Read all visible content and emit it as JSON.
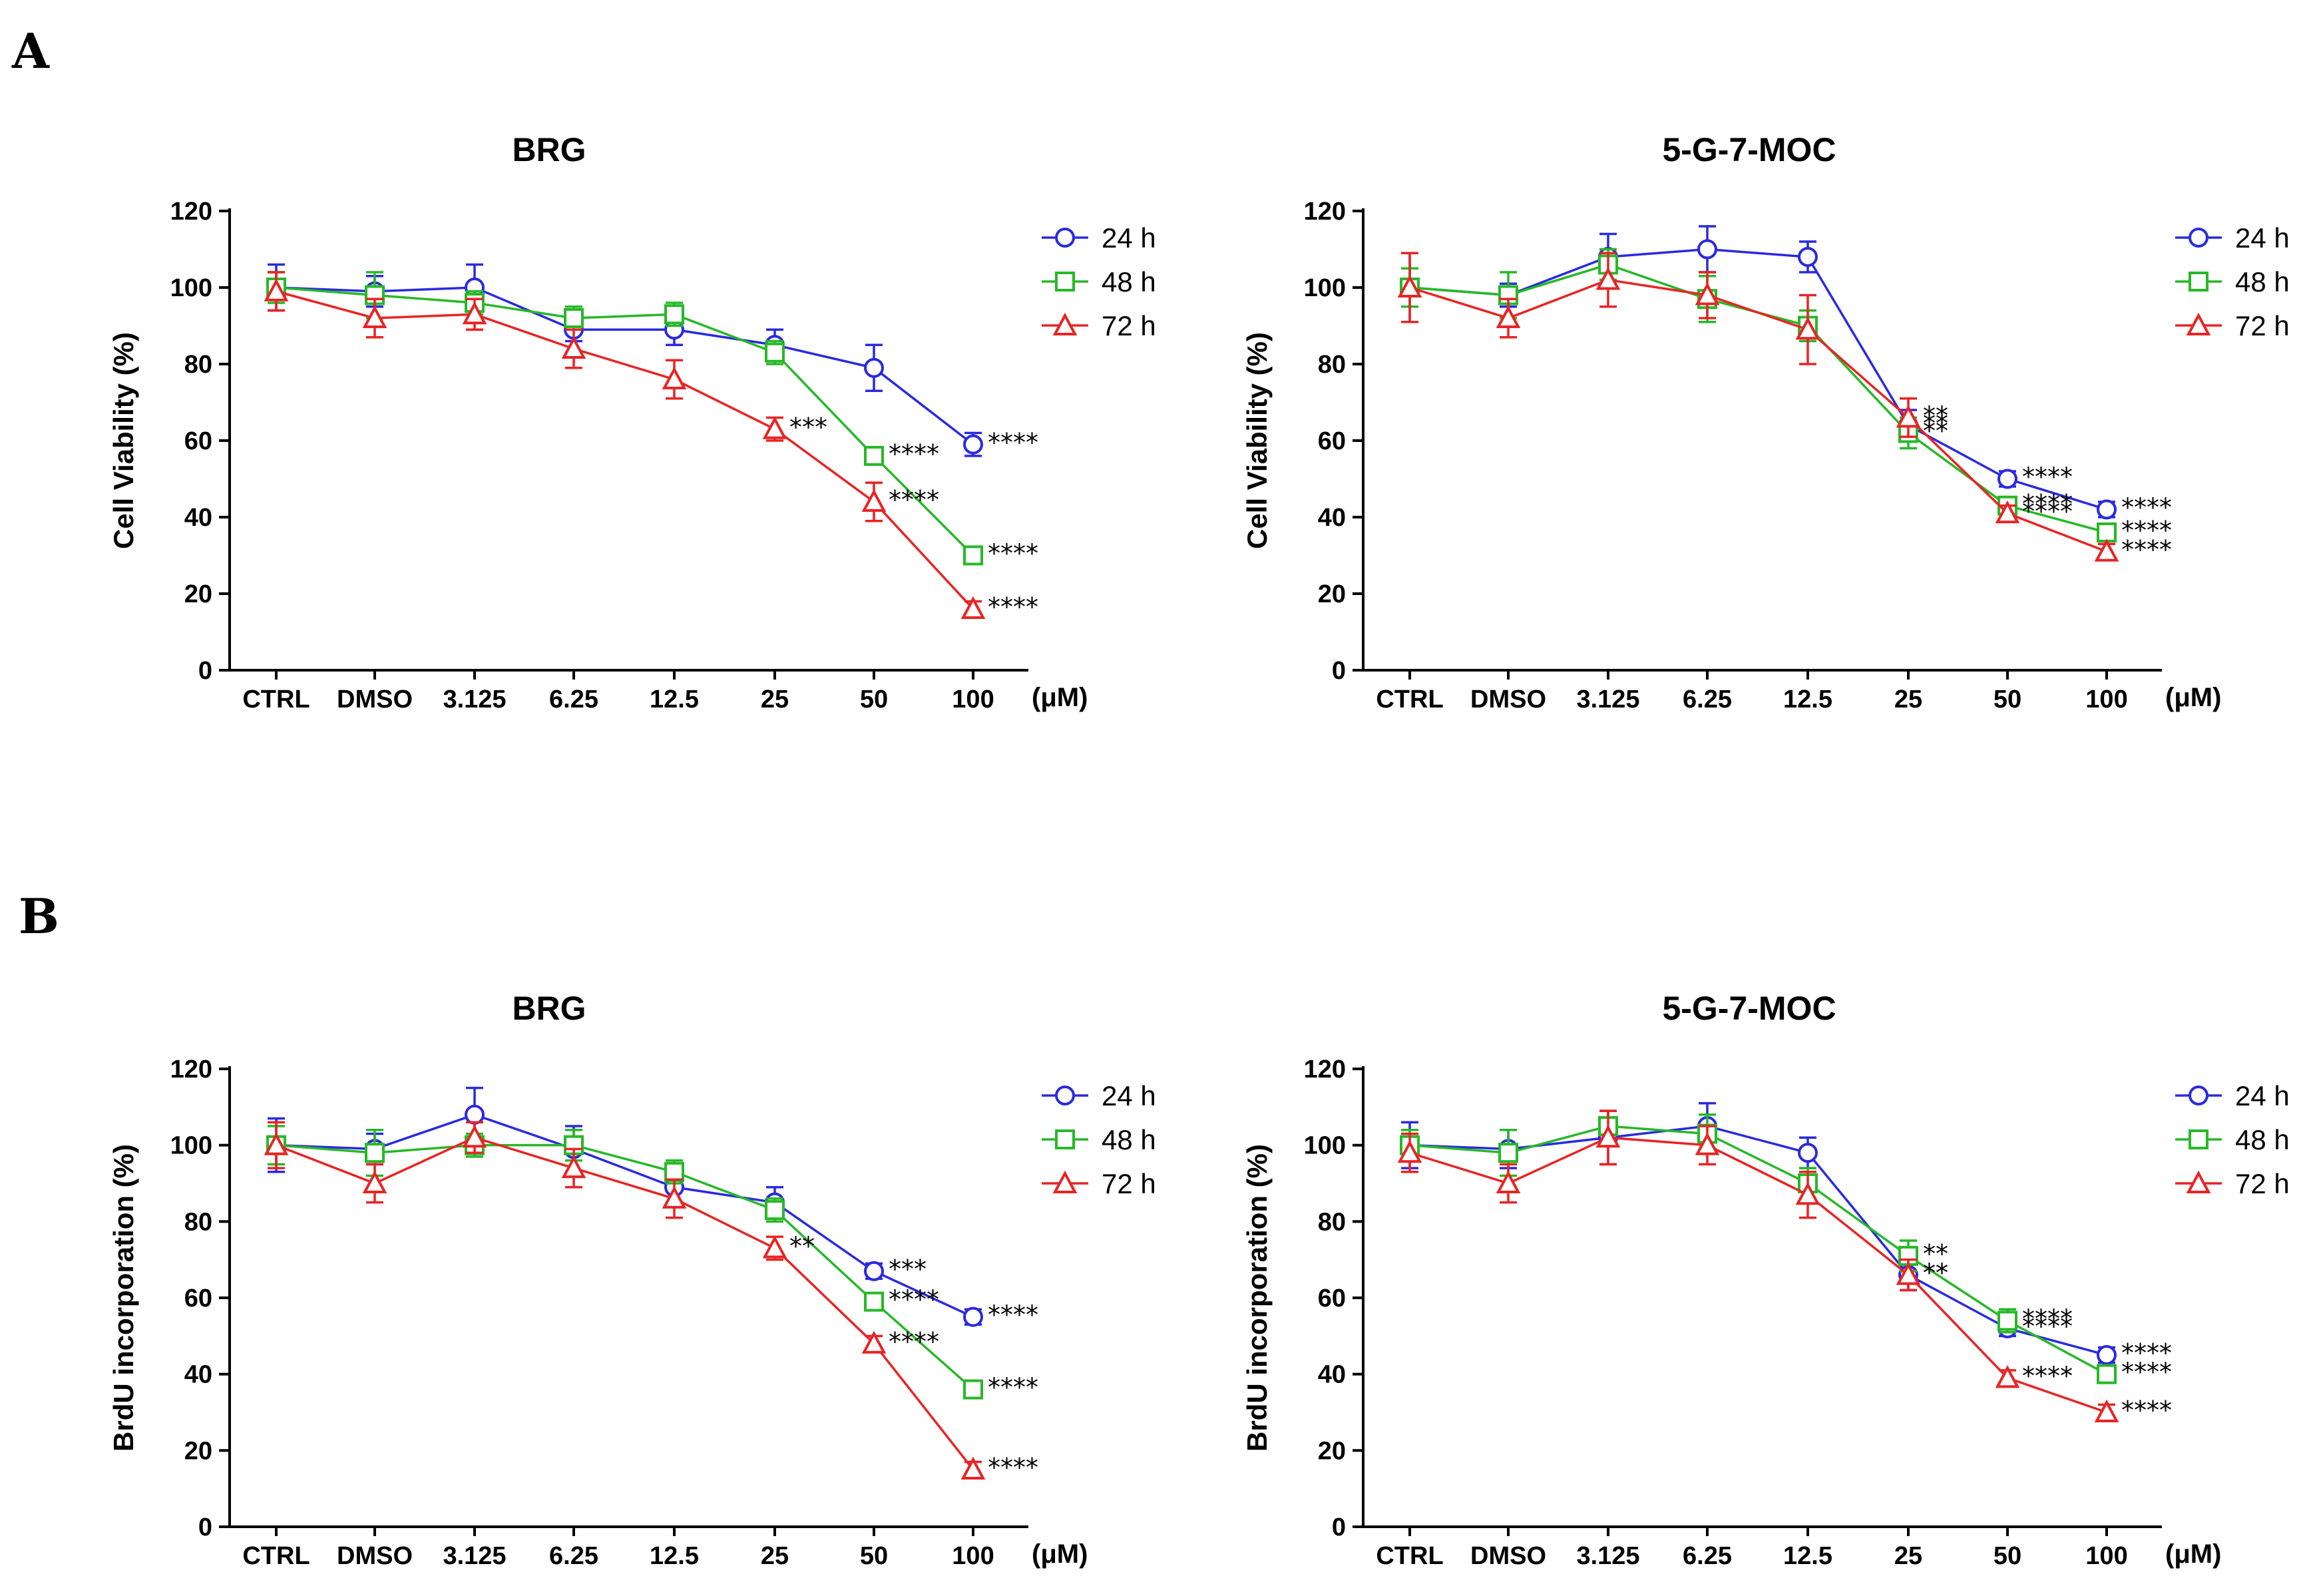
{
  "panel_labels": [
    "A",
    "B"
  ],
  "colors": {
    "24 h": "#2a2ae0",
    "48 h": "#27b827",
    "72 h": "#e82424"
  },
  "chart_data": [
    {
      "type": "line",
      "panel": "A",
      "title": "BRG",
      "xlabel": "",
      "ylabel": "Cell Viability (%)",
      "unit": "(μM)",
      "categories": [
        "CTRL",
        "DMSO",
        "3.125",
        "6.25",
        "12.5",
        "25",
        "50",
        "100"
      ],
      "ylim": [
        0,
        120
      ],
      "yticks": [
        0,
        20,
        40,
        60,
        80,
        100,
        120
      ],
      "legend": "top-right",
      "series": [
        {
          "name": "24 h",
          "marker": "circle",
          "values": [
            100,
            99,
            100,
            89,
            89,
            85,
            79,
            59
          ],
          "errors": [
            6,
            4,
            6,
            3,
            4,
            4,
            6,
            3
          ],
          "annotations": [
            "",
            "",
            "",
            "",
            "",
            "",
            "",
            "****"
          ]
        },
        {
          "name": "48 h",
          "marker": "square",
          "values": [
            100,
            98,
            96,
            92,
            93,
            83,
            56,
            30
          ],
          "errors": [
            4,
            6,
            3,
            3,
            3,
            3,
            2,
            2
          ],
          "annotations": [
            "",
            "",
            "",
            "",
            "",
            "",
            "****",
            "****"
          ]
        },
        {
          "name": "72 h",
          "marker": "triangle",
          "values": [
            99,
            92,
            93,
            84,
            76,
            63,
            44,
            16
          ],
          "errors": [
            5,
            5,
            4,
            5,
            5,
            3,
            5,
            2
          ],
          "annotations": [
            "",
            "",
            "",
            "",
            "",
            "***",
            "****",
            "****"
          ]
        }
      ]
    },
    {
      "type": "line",
      "panel": "A",
      "title": "5-G-7-MOC",
      "xlabel": "",
      "ylabel": "Cell Viability (%)",
      "unit": "(μM)",
      "categories": [
        "CTRL",
        "DMSO",
        "3.125",
        "6.25",
        "12.5",
        "25",
        "50",
        "100"
      ],
      "ylim": [
        0,
        120
      ],
      "yticks": [
        0,
        20,
        40,
        60,
        80,
        100,
        120
      ],
      "legend": "top-right",
      "series": [
        {
          "name": "24 h",
          "marker": "circle",
          "values": [
            100,
            98,
            108,
            110,
            108,
            64,
            50,
            42
          ],
          "errors": [
            9,
            3,
            6,
            6,
            4,
            4,
            2,
            2
          ],
          "annotations": [
            "",
            "",
            "",
            "",
            "",
            "**",
            "****",
            "****"
          ]
        },
        {
          "name": "48 h",
          "marker": "square",
          "values": [
            100,
            98,
            106,
            97,
            90,
            62,
            43,
            36
          ],
          "errors": [
            5,
            6,
            4,
            6,
            4,
            4,
            2,
            2
          ],
          "annotations": [
            "",
            "",
            "",
            "",
            "",
            "**",
            "****",
            "****"
          ]
        },
        {
          "name": "72 h",
          "marker": "triangle",
          "values": [
            100,
            92,
            102,
            98,
            89,
            66,
            41,
            31
          ],
          "errors": [
            9,
            5,
            7,
            6,
            9,
            5,
            2,
            2
          ],
          "annotations": [
            "",
            "",
            "",
            "",
            "",
            "**",
            "****",
            "****"
          ]
        }
      ]
    },
    {
      "type": "line",
      "panel": "B",
      "title": "BRG",
      "xlabel": "",
      "ylabel": "BrdU incorporation (%)",
      "unit": "(μM)",
      "categories": [
        "CTRL",
        "DMSO",
        "3.125",
        "6.25",
        "12.5",
        "25",
        "50",
        "100"
      ],
      "ylim": [
        0,
        120
      ],
      "yticks": [
        0,
        20,
        40,
        60,
        80,
        100,
        120
      ],
      "legend": "top-right",
      "series": [
        {
          "name": "24 h",
          "marker": "circle",
          "values": [
            100,
            99,
            108,
            99,
            89,
            85,
            67,
            55
          ],
          "errors": [
            7,
            4,
            7,
            6,
            4,
            4,
            2,
            2
          ],
          "annotations": [
            "",
            "",
            "",
            "",
            "",
            "",
            "***",
            "****"
          ]
        },
        {
          "name": "48 h",
          "marker": "square",
          "values": [
            100,
            98,
            100,
            100,
            93,
            83,
            59,
            36
          ],
          "errors": [
            5,
            6,
            3,
            4,
            3,
            3,
            2,
            2
          ],
          "annotations": [
            "",
            "",
            "",
            "",
            "",
            "",
            "****",
            "****"
          ]
        },
        {
          "name": "72 h",
          "marker": "triangle",
          "values": [
            100,
            90,
            102,
            94,
            86,
            73,
            48,
            15
          ],
          "errors": [
            6,
            5,
            4,
            5,
            5,
            3,
            2,
            2
          ],
          "annotations": [
            "",
            "",
            "",
            "",
            "",
            "**",
            "****",
            "****"
          ]
        }
      ]
    },
    {
      "type": "line",
      "panel": "B",
      "title": "5-G-7-MOC",
      "xlabel": "",
      "ylabel": "BrdU incorporation (%)",
      "unit": "(μM)",
      "categories": [
        "CTRL",
        "DMSO",
        "3.125",
        "6.25",
        "12.5",
        "25",
        "50",
        "100"
      ],
      "ylim": [
        0,
        120
      ],
      "yticks": [
        0,
        20,
        40,
        60,
        80,
        100,
        120
      ],
      "legend": "top-right",
      "series": [
        {
          "name": "24 h",
          "marker": "circle",
          "values": [
            100,
            99,
            102,
            105,
            98,
            66,
            52,
            45
          ],
          "errors": [
            6,
            5,
            7,
            6,
            4,
            4,
            2,
            2
          ],
          "annotations": [
            "",
            "",
            "",
            "",
            "",
            "**",
            "****",
            "****"
          ]
        },
        {
          "name": "48 h",
          "marker": "square",
          "values": [
            100,
            98,
            105,
            103,
            90,
            71,
            54,
            40
          ],
          "errors": [
            4,
            6,
            4,
            5,
            4,
            4,
            3,
            2
          ],
          "annotations": [
            "",
            "",
            "",
            "",
            "",
            "**",
            "****",
            "****"
          ]
        },
        {
          "name": "72 h",
          "marker": "triangle",
          "values": [
            98,
            90,
            102,
            100,
            87,
            66,
            39,
            30
          ],
          "errors": [
            5,
            5,
            7,
            5,
            6,
            4,
            2,
            2
          ],
          "annotations": [
            "",
            "",
            "",
            "",
            "",
            "**",
            "****",
            "****"
          ]
        }
      ]
    }
  ]
}
